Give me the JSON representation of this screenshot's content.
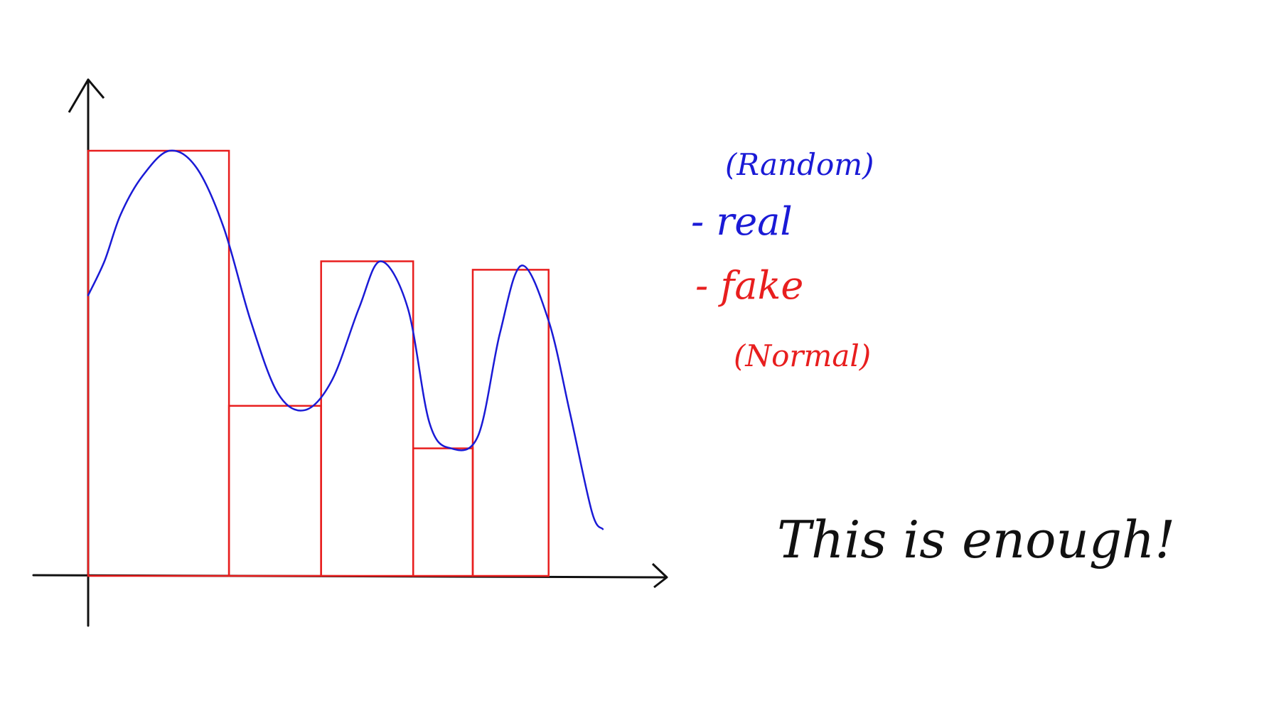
{
  "colors": {
    "background": "#ffffff",
    "axes": "#111111",
    "real": "#1a1ad6",
    "fake": "#e81e1e"
  },
  "chart_data": {
    "type": "line",
    "title": "",
    "xlabel": "",
    "ylabel": "",
    "grid": false,
    "legend_position": "right",
    "xlim": [
      0,
      10
    ],
    "ylim": [
      0,
      10
    ],
    "series": [
      {
        "name": "real",
        "color": "#1a1ad6",
        "style": "smooth-curve",
        "x": [
          0,
          0.3,
          0.6,
          1.0,
          1.5,
          2.0,
          2.5,
          3.0,
          3.5,
          4.0,
          4.5,
          5.0,
          5.4,
          5.9,
          6.3,
          6.7,
          7.2,
          7.6,
          8.0,
          8.5,
          8.9,
          9.3,
          9.5
        ],
        "y": [
          6.6,
          7.4,
          8.5,
          9.4,
          10.0,
          9.6,
          8.2,
          6.0,
          4.3,
          3.9,
          4.6,
          6.3,
          7.4,
          6.3,
          3.6,
          3.0,
          3.3,
          5.7,
          7.3,
          6.0,
          3.8,
          1.5,
          1.1
        ]
      },
      {
        "name": "fake",
        "color": "#e81e1e",
        "style": "histogram",
        "bins": [
          {
            "x0": 0,
            "x1": 2.6,
            "value": 10.0
          },
          {
            "x0": 2.6,
            "x1": 4.3,
            "value": 4.0
          },
          {
            "x0": 4.3,
            "x1": 6.0,
            "value": 7.4
          },
          {
            "x0": 6.0,
            "x1": 7.1,
            "value": 3.0
          },
          {
            "x0": 7.1,
            "x1": 8.5,
            "value": 7.2
          }
        ]
      }
    ]
  },
  "legend": {
    "random_label": "(Random)",
    "real_label": "- real",
    "fake_label": "- fake",
    "normal_label": "(Normal)"
  },
  "note": {
    "text": "This is enough!"
  }
}
